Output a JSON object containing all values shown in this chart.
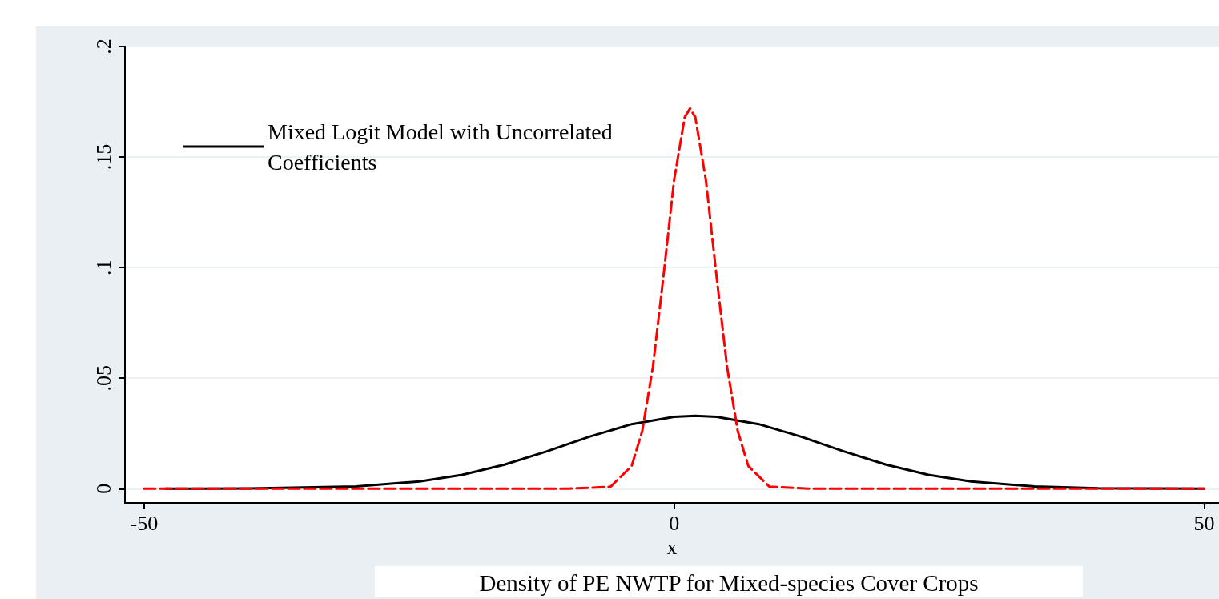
{
  "chart_data": {
    "type": "line",
    "title": "Density of PE NWTP for Mixed-species Cover Crops",
    "xlabel": "x",
    "xlim": [
      -51.8,
      51.4
    ],
    "xticks": [
      -50,
      0,
      50
    ],
    "ylim": [
      -0.0064,
      0.2
    ],
    "yticks": [
      {
        "value": 0,
        "label": "0"
      },
      {
        "value": 0.05,
        "label": ".05"
      },
      {
        "value": 0.1,
        "label": ".1"
      },
      {
        "value": 0.15,
        "label": ".15"
      },
      {
        "value": 0.2,
        "label": ".2"
      }
    ],
    "grid": "y",
    "legend": "top left",
    "marker": "none",
    "series": [
      {
        "name": "Mixed Logit Model with Uncorrelated Coefficients",
        "color": "#000000",
        "line_style": "solid",
        "x": [
          -48,
          -40,
          -30,
          -24,
          -20,
          -16,
          -12,
          -8,
          -4,
          0,
          2,
          4,
          8,
          12,
          16,
          20,
          24,
          28,
          34,
          40,
          50
        ],
        "values": [
          0,
          0.0001,
          0.001,
          0.0033,
          0.0063,
          0.0109,
          0.0169,
          0.0235,
          0.0292,
          0.0325,
          0.033,
          0.0325,
          0.0292,
          0.0235,
          0.0169,
          0.0109,
          0.0063,
          0.0033,
          0.001,
          0.0002,
          0
        ]
      },
      {
        "color": "#ff0000",
        "line_style": "dashed",
        "x": [
          -50,
          -10,
          -6,
          -4,
          -3,
          -2,
          -1,
          0,
          1,
          1.5,
          2,
          3,
          4,
          5,
          6,
          7,
          9,
          13,
          50
        ],
        "values": [
          0,
          0,
          0.0009,
          0.0103,
          0.0262,
          0.0551,
          0.0962,
          0.1396,
          0.168,
          0.172,
          0.168,
          0.1396,
          0.0962,
          0.0551,
          0.0262,
          0.0103,
          0.0009,
          0,
          0
        ]
      }
    ]
  }
}
